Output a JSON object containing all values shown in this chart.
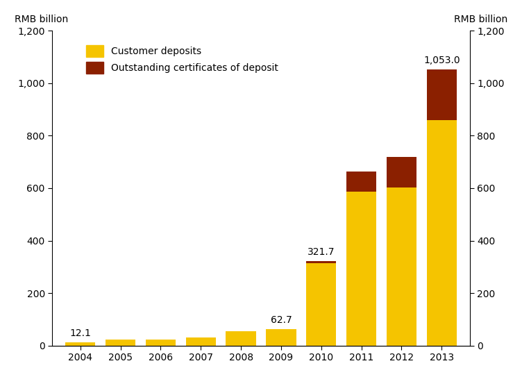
{
  "years": [
    2004,
    2005,
    2006,
    2007,
    2008,
    2009,
    2010,
    2011,
    2012,
    2013
  ],
  "customer_deposits": [
    12.1,
    24.0,
    23.0,
    32.0,
    55.0,
    62.7,
    315.0,
    588.0,
    603.0,
    860.0
  ],
  "certificates_of_deposit": [
    0.0,
    0.0,
    0.0,
    0.0,
    0.0,
    0.0,
    6.7,
    75.0,
    115.0,
    193.0
  ],
  "customer_color": "#F5C400",
  "cert_color": "#8B2000",
  "ylim": [
    0,
    1200
  ],
  "yticks": [
    0,
    200,
    400,
    600,
    800,
    1000,
    1200
  ],
  "ylabel_left": "RMB billion",
  "ylabel_right": "RMB billion",
  "legend_customer": "Customer deposits",
  "legend_cert": "Outstanding certificates of deposit",
  "bar_width": 0.75,
  "background_color": "#ffffff",
  "annotation_fontsize": 10,
  "axis_fontsize": 10,
  "legend_fontsize": 10
}
